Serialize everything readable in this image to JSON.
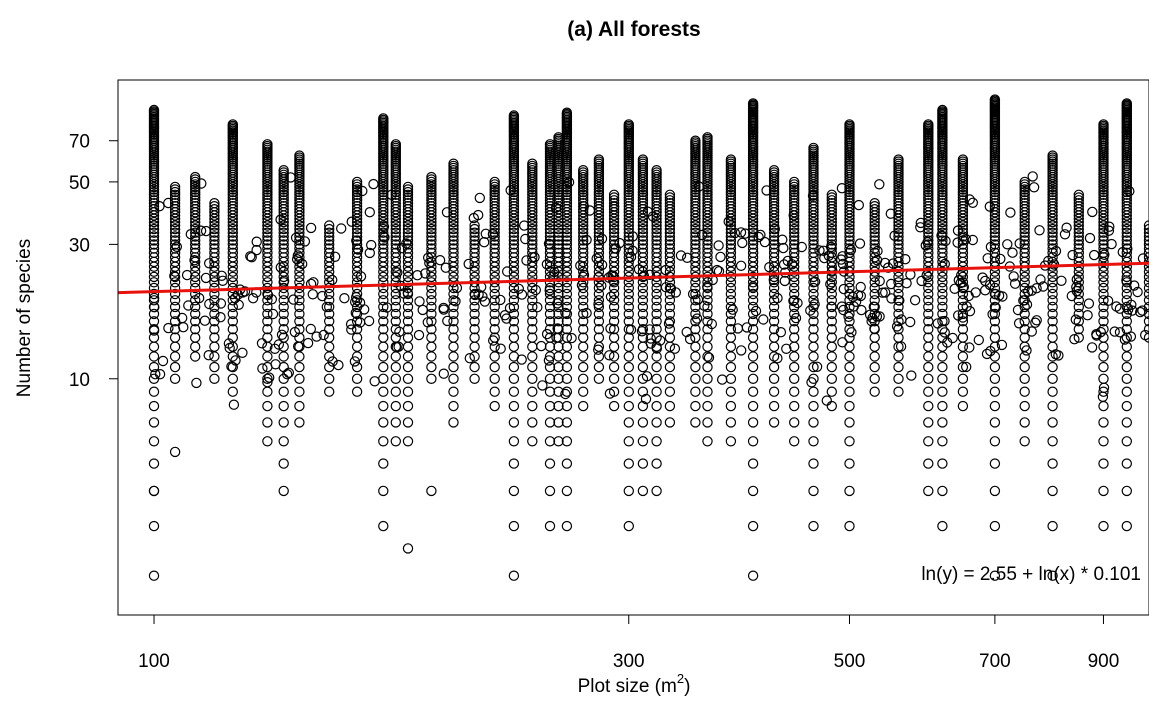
{
  "chart_data": {
    "type": "scatter",
    "title": "(a) All forests",
    "xlabel": "Plot size (m",
    "xlabel_sup": "2",
    "xlabel_close": ")",
    "ylabel": "Number of species",
    "x_scale": "log",
    "y_scale": "log",
    "xlim": [
      92,
      1000
    ],
    "ylim": [
      1.45,
      115
    ],
    "xticks": [
      100,
      300,
      500,
      700,
      900
    ],
    "yticks": [
      10,
      30,
      50,
      70
    ],
    "annotation": "ln(y) = 2.55 + ln(x) * 0.101",
    "fit": {
      "intercept": 2.55,
      "slope": 0.101,
      "color": "#e8120c"
    },
    "marker_color": "#000000",
    "columns": [
      {
        "x": 100,
        "min": 3,
        "max": 90,
        "loners": [
          2,
          4
        ]
      },
      {
        "x": 105,
        "min": 10,
        "max": 48,
        "loners": [
          5.5
        ]
      },
      {
        "x": 110,
        "min": 12,
        "max": 52,
        "loners": []
      },
      {
        "x": 115,
        "min": 10,
        "max": 42,
        "loners": []
      },
      {
        "x": 120,
        "min": 9,
        "max": 80,
        "loners": []
      },
      {
        "x": 130,
        "min": 6,
        "max": 68,
        "loners": []
      },
      {
        "x": 135,
        "min": 5,
        "max": 55,
        "loners": [
          4
        ]
      },
      {
        "x": 140,
        "min": 7,
        "max": 62,
        "loners": []
      },
      {
        "x": 150,
        "min": 9,
        "max": 35,
        "loners": []
      },
      {
        "x": 160,
        "min": 9,
        "max": 50,
        "loners": []
      },
      {
        "x": 170,
        "min": 3,
        "max": 84,
        "loners": []
      },
      {
        "x": 175,
        "min": 6,
        "max": 68,
        "loners": []
      },
      {
        "x": 180,
        "min": 6,
        "max": 48,
        "loners": [
          2.5
        ]
      },
      {
        "x": 190,
        "min": 10,
        "max": 52,
        "loners": [
          4
        ]
      },
      {
        "x": 200,
        "min": 7,
        "max": 58,
        "loners": []
      },
      {
        "x": 210,
        "min": 10,
        "max": 35,
        "loners": []
      },
      {
        "x": 220,
        "min": 8,
        "max": 50,
        "loners": []
      },
      {
        "x": 230,
        "min": 3,
        "max": 86,
        "loners": [
          2
        ]
      },
      {
        "x": 240,
        "min": 6,
        "max": 58,
        "loners": []
      },
      {
        "x": 250,
        "min": 3,
        "max": 68,
        "loners": []
      },
      {
        "x": 255,
        "min": 6,
        "max": 72,
        "loners": []
      },
      {
        "x": 260,
        "min": 3,
        "max": 88,
        "loners": []
      },
      {
        "x": 270,
        "min": 8,
        "max": 55,
        "loners": []
      },
      {
        "x": 280,
        "min": 10,
        "max": 60,
        "loners": []
      },
      {
        "x": 290,
        "min": 8,
        "max": 45,
        "loners": []
      },
      {
        "x": 300,
        "min": 3,
        "max": 80,
        "loners": []
      },
      {
        "x": 310,
        "min": 4,
        "max": 60,
        "loners": []
      },
      {
        "x": 320,
        "min": 4,
        "max": 55,
        "loners": []
      },
      {
        "x": 330,
        "min": 7,
        "max": 45,
        "loners": []
      },
      {
        "x": 350,
        "min": 7,
        "max": 70,
        "loners": []
      },
      {
        "x": 360,
        "min": 6,
        "max": 72,
        "loners": []
      },
      {
        "x": 380,
        "min": 6,
        "max": 60,
        "loners": []
      },
      {
        "x": 400,
        "min": 2,
        "max": 95,
        "loners": []
      },
      {
        "x": 420,
        "min": 7,
        "max": 55,
        "loners": []
      },
      {
        "x": 440,
        "min": 6,
        "max": 50,
        "loners": []
      },
      {
        "x": 460,
        "min": 3,
        "max": 66,
        "loners": []
      },
      {
        "x": 480,
        "min": 8,
        "max": 45,
        "loners": []
      },
      {
        "x": 500,
        "min": 3,
        "max": 80,
        "loners": []
      },
      {
        "x": 530,
        "min": 9,
        "max": 42,
        "loners": []
      },
      {
        "x": 560,
        "min": 9,
        "max": 60,
        "loners": []
      },
      {
        "x": 600,
        "min": 4,
        "max": 80,
        "loners": []
      },
      {
        "x": 620,
        "min": 3,
        "max": 90,
        "loners": []
      },
      {
        "x": 650,
        "min": 8,
        "max": 60,
        "loners": []
      },
      {
        "x": 700,
        "min": 2,
        "max": 98,
        "loners": []
      },
      {
        "x": 750,
        "min": 6,
        "max": 50,
        "loners": []
      },
      {
        "x": 800,
        "min": 2,
        "max": 62,
        "loners": []
      },
      {
        "x": 850,
        "min": 14,
        "max": 45,
        "loners": []
      },
      {
        "x": 900,
        "min": 3,
        "max": 80,
        "loners": []
      },
      {
        "x": 950,
        "min": 3,
        "max": 95,
        "loners": []
      },
      {
        "x": 1000,
        "min": 14,
        "max": 35,
        "loners": []
      }
    ]
  }
}
